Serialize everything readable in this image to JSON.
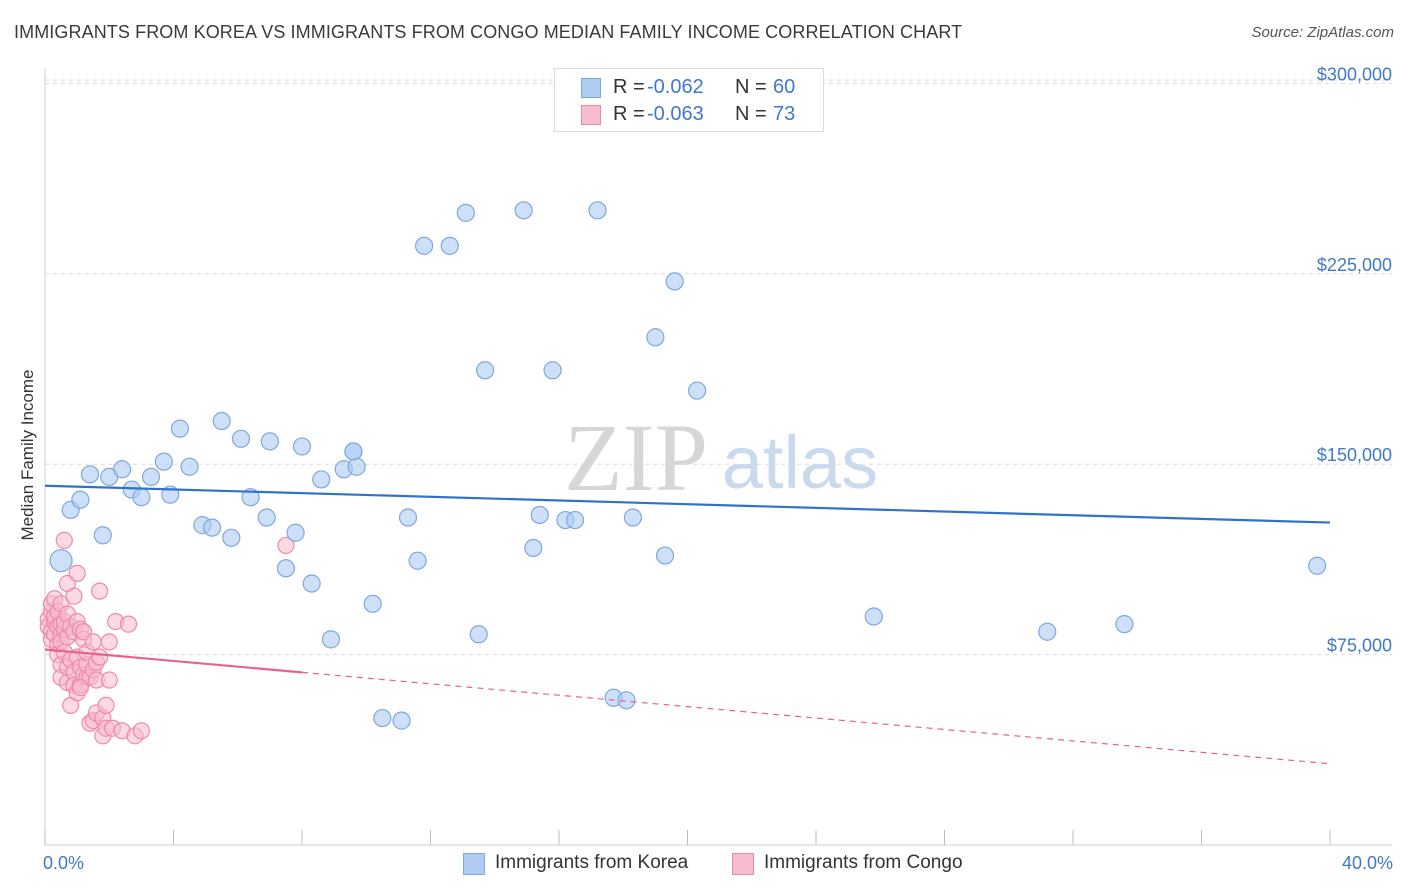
{
  "title": "IMMIGRANTS FROM KOREA VS IMMIGRANTS FROM CONGO MEDIAN FAMILY INCOME CORRELATION CHART",
  "source": "Source: ZipAtlas.com",
  "watermark": {
    "zip": "ZIP",
    "atlas": "atlas"
  },
  "colors": {
    "korea_fill": "#aecbf2",
    "korea_stroke": "#7ea8de",
    "korea_line": "#2f72cc",
    "congo_fill": "#f7bccd",
    "congo_stroke": "#ee8aa8",
    "congo_line": "#e8628e",
    "tick_text": "#3f79c9",
    "grid": "#dcdcdc"
  },
  "legend_top": {
    "rows": [
      {
        "r_label": "R =",
        "r_value": "-0.062",
        "n_label": "N =",
        "n_value": "60"
      },
      {
        "r_label": "R =",
        "r_value": "-0.063",
        "n_label": "N =",
        "n_value": "73"
      }
    ]
  },
  "chart_data": {
    "type": "scatter",
    "title": "IMMIGRANTS FROM KOREA VS IMMIGRANTS FROM CONGO MEDIAN FAMILY INCOME CORRELATION CHART",
    "xlabel": "",
    "ylabel": "Median Family Income",
    "xlim": [
      0,
      40
    ],
    "ylim": [
      0,
      310000
    ],
    "x_tick_labels": [
      "0.0%",
      "40.0%"
    ],
    "y_ticks": [
      75000,
      150000,
      225000,
      300000
    ],
    "y_tick_labels": [
      "$75,000",
      "$150,000",
      "$225,000",
      "$300,000"
    ],
    "legend_position": "bottom-center",
    "series": [
      {
        "name": "Immigrants from Korea",
        "r": -0.062,
        "n": 60,
        "trend": {
          "x": [
            0,
            40
          ],
          "y": [
            141500,
            127000
          ],
          "style": "solid"
        },
        "points": [
          [
            0.5,
            112000
          ],
          [
            0.8,
            132000
          ],
          [
            1.1,
            136000
          ],
          [
            1.4,
            146000
          ],
          [
            1.8,
            122000
          ],
          [
            2.0,
            145000
          ],
          [
            2.4,
            148000
          ],
          [
            2.7,
            140000
          ],
          [
            3.0,
            137000
          ],
          [
            3.3,
            145000
          ],
          [
            3.7,
            151000
          ],
          [
            3.9,
            138000
          ],
          [
            4.2,
            164000
          ],
          [
            4.5,
            149000
          ],
          [
            4.9,
            126000
          ],
          [
            5.2,
            125000
          ],
          [
            5.5,
            167000
          ],
          [
            5.8,
            121000
          ],
          [
            6.1,
            160000
          ],
          [
            6.4,
            137000
          ],
          [
            6.9,
            129000
          ],
          [
            7.0,
            159000
          ],
          [
            7.5,
            109000
          ],
          [
            7.8,
            123000
          ],
          [
            8.0,
            157000
          ],
          [
            8.3,
            103000
          ],
          [
            8.6,
            144000
          ],
          [
            8.9,
            81000
          ],
          [
            9.3,
            148000
          ],
          [
            9.6,
            155000
          ],
          [
            9.7,
            149000
          ],
          [
            10.2,
            95000
          ],
          [
            10.5,
            50000
          ],
          [
            11.1,
            49000
          ],
          [
            11.3,
            129000
          ],
          [
            11.6,
            112000
          ],
          [
            11.8,
            236000
          ],
          [
            12.6,
            236000
          ],
          [
            13.1,
            249000
          ],
          [
            13.5,
            83000
          ],
          [
            13.7,
            187000
          ],
          [
            14.9,
            250000
          ],
          [
            15.2,
            117000
          ],
          [
            15.4,
            130000
          ],
          [
            15.8,
            187000
          ],
          [
            16.2,
            128000
          ],
          [
            16.5,
            128000
          ],
          [
            17.2,
            250000
          ],
          [
            17.7,
            58000
          ],
          [
            18.1,
            57000
          ],
          [
            18.3,
            129000
          ],
          [
            19.0,
            200000
          ],
          [
            19.3,
            114000
          ],
          [
            19.6,
            222000
          ],
          [
            20.3,
            179000
          ],
          [
            25.8,
            90000
          ],
          [
            31.2,
            84000
          ],
          [
            33.6,
            87000
          ],
          [
            39.6,
            110000
          ],
          [
            9.6,
            155000
          ]
        ]
      },
      {
        "name": "Immigrants from Congo",
        "r": -0.063,
        "n": 73,
        "trend": {
          "x": [
            0,
            8
          ],
          "y": [
            77000,
            68000
          ],
          "style": "solid"
        },
        "trend_extended": {
          "x": [
            8,
            40
          ],
          "y": [
            68000,
            32000
          ],
          "style": "dashed"
        },
        "points": [
          [
            0.1,
            89000
          ],
          [
            0.1,
            86000
          ],
          [
            0.2,
            92000
          ],
          [
            0.2,
            84000
          ],
          [
            0.2,
            95000
          ],
          [
            0.2,
            81000
          ],
          [
            0.3,
            88000
          ],
          [
            0.3,
            97000
          ],
          [
            0.3,
            83000
          ],
          [
            0.3,
            90000
          ],
          [
            0.4,
            86000
          ],
          [
            0.4,
            79000
          ],
          [
            0.4,
            75000
          ],
          [
            0.4,
            92000
          ],
          [
            0.5,
            83000
          ],
          [
            0.5,
            71000
          ],
          [
            0.5,
            87000
          ],
          [
            0.5,
            80000
          ],
          [
            0.5,
            66000
          ],
          [
            0.5,
            95000
          ],
          [
            0.6,
            85000
          ],
          [
            0.6,
            120000
          ],
          [
            0.6,
            88000
          ],
          [
            0.6,
            76000
          ],
          [
            0.7,
            82000
          ],
          [
            0.7,
            70000
          ],
          [
            0.7,
            91000
          ],
          [
            0.7,
            64000
          ],
          [
            0.7,
            103000
          ],
          [
            0.8,
            86000
          ],
          [
            0.8,
            55000
          ],
          [
            0.8,
            73000
          ],
          [
            0.9,
            84000
          ],
          [
            0.9,
            98000
          ],
          [
            0.9,
            68000
          ],
          [
            0.9,
            63000
          ],
          [
            1.0,
            88000
          ],
          [
            1.0,
            74000
          ],
          [
            1.0,
            107000
          ],
          [
            1.0,
            60000
          ],
          [
            1.1,
            85000
          ],
          [
            1.1,
            70000
          ],
          [
            1.1,
            63000
          ],
          [
            1.2,
            81000
          ],
          [
            1.2,
            67000
          ],
          [
            1.2,
            84000
          ],
          [
            1.3,
            66000
          ],
          [
            1.3,
            71000
          ],
          [
            1.3,
            76000
          ],
          [
            1.4,
            48000
          ],
          [
            1.4,
            66000
          ],
          [
            1.5,
            69000
          ],
          [
            1.5,
            49000
          ],
          [
            1.5,
            80000
          ],
          [
            1.6,
            65000
          ],
          [
            1.6,
            72000
          ],
          [
            1.6,
            52000
          ],
          [
            1.7,
            100000
          ],
          [
            1.7,
            74000
          ],
          [
            1.8,
            50000
          ],
          [
            1.8,
            43000
          ],
          [
            1.9,
            55000
          ],
          [
            1.9,
            46000
          ],
          [
            2.0,
            80000
          ],
          [
            2.0,
            65000
          ],
          [
            2.1,
            46000
          ],
          [
            2.2,
            88000
          ],
          [
            2.4,
            45000
          ],
          [
            2.6,
            87000
          ],
          [
            2.8,
            43000
          ],
          [
            3.0,
            45000
          ],
          [
            7.5,
            118000
          ],
          [
            1.1,
            62000
          ]
        ]
      }
    ]
  },
  "legend_bottom": [
    {
      "label": "Immigrants from Korea"
    },
    {
      "label": "Immigrants from Congo"
    }
  ]
}
